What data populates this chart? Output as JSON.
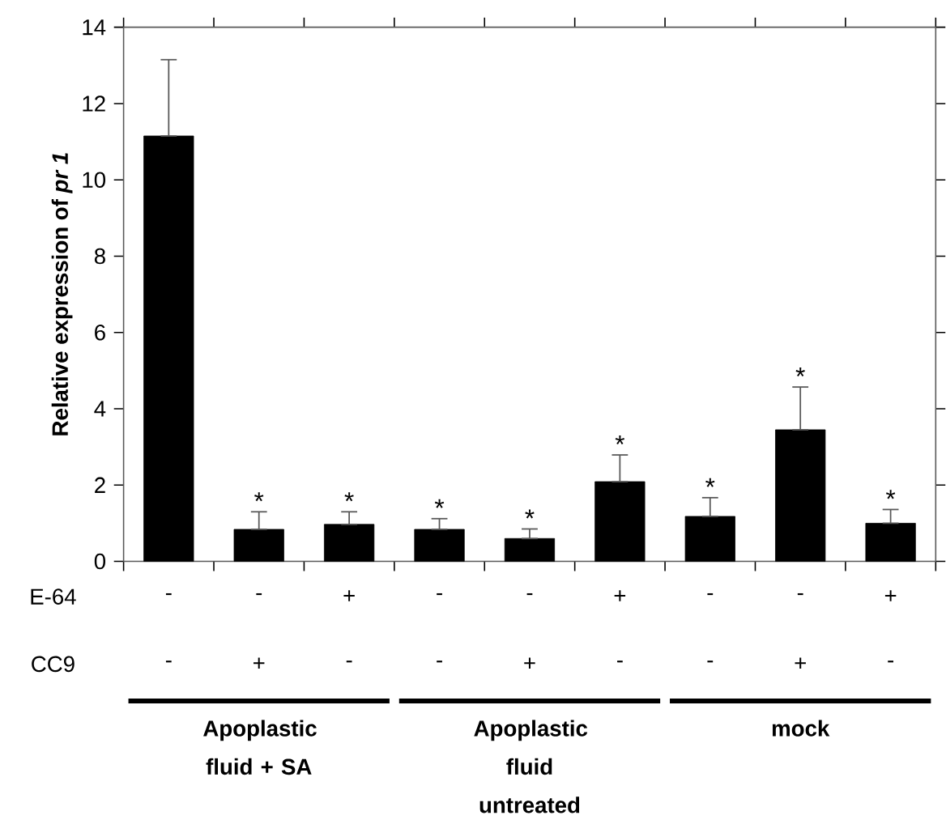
{
  "chart_data": {
    "type": "bar",
    "ylabel": "Relative expression of *pr 1*",
    "categories": [
      null,
      null,
      null,
      null,
      null,
      null,
      null,
      null,
      null
    ],
    "values": [
      11.15,
      0.84,
      0.97,
      0.84,
      0.6,
      2.09,
      1.18,
      3.45,
      1.0
    ],
    "color": "#000000",
    "errors": [
      [
        11.15,
        13.15
      ],
      [
        0.84,
        1.3
      ],
      [
        0.97,
        1.3
      ],
      [
        0.84,
        1.12
      ],
      [
        0.6,
        0.85
      ],
      [
        2.09,
        2.79
      ],
      [
        1.18,
        1.67
      ],
      [
        3.45,
        4.57
      ],
      [
        1.0,
        1.36
      ]
    ],
    "value_labels": [
      null,
      "*",
      "*",
      "*",
      "*",
      "*",
      "*",
      "*",
      "*"
    ],
    "ylim": [
      0,
      14
    ],
    "yticks": [
      0,
      2,
      4,
      6,
      8,
      10,
      12,
      14
    ],
    "annotations": [
      "E-64",
      "-",
      "-",
      "+",
      "-",
      "-",
      "+",
      "-",
      "-",
      "+",
      "CC9",
      "-",
      "+",
      "-",
      "-",
      "+",
      "-",
      "-",
      "+",
      "-",
      "Apoplastic fluid + SA",
      "Apoplastic fluid untreated",
      "mock"
    ]
  }
}
